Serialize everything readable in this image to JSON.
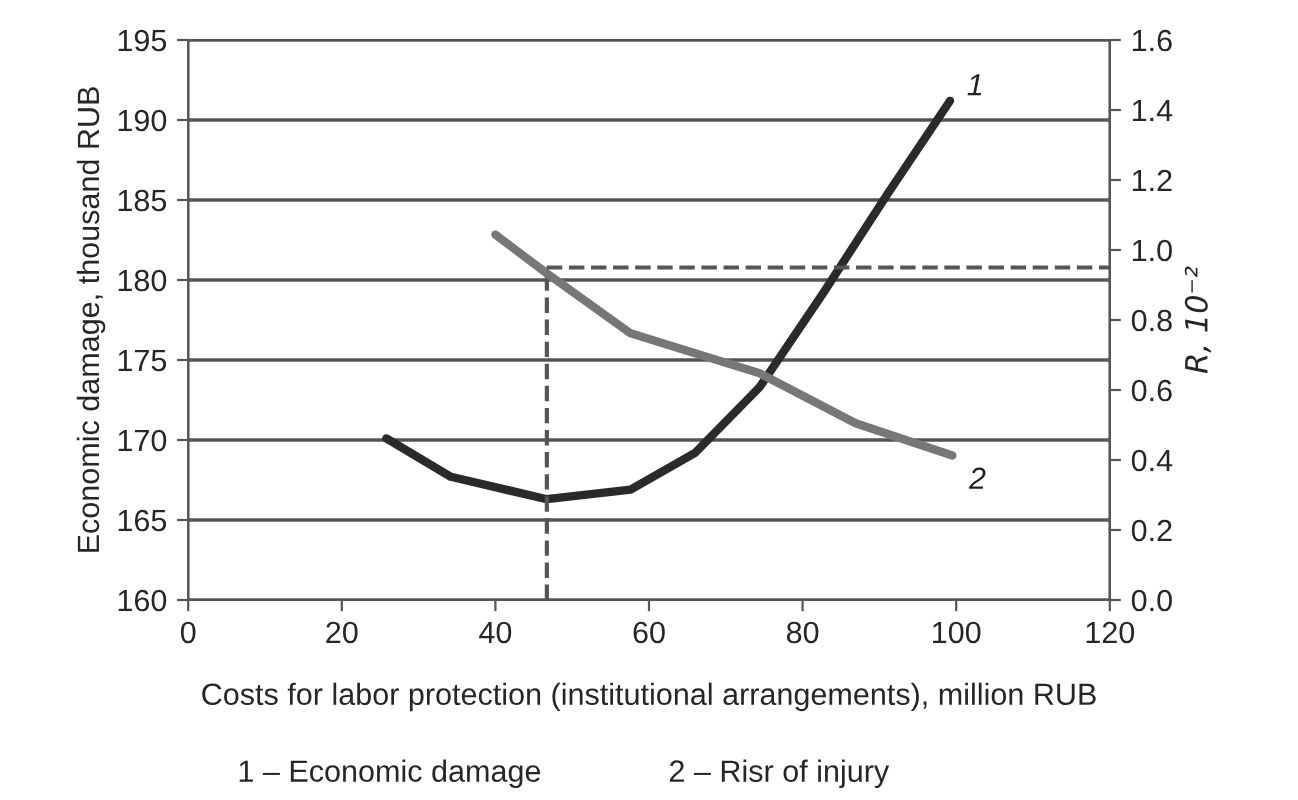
{
  "chart_data": {
    "type": "line",
    "xlabel": "Costs for labor protection (institutional arrangements), million RUB",
    "ylabel": "Economic damage, thousand RUB",
    "y2label": "R, 10⁻²",
    "series": [
      {
        "name": "1",
        "color": "#2a2a2a",
        "x": [
          25.8,
          34.2,
          46.7,
          57.6,
          66,
          74.4,
          82.7,
          91.1,
          99.2
        ],
        "values": [
          170.1,
          167.7,
          166.3,
          166.9,
          169.2,
          173.3,
          179.2,
          185.4,
          191.2
        ]
      },
      {
        "name": "2",
        "color": "#777777",
        "axis": "y2",
        "x": [
          40,
          46.7,
          57.6,
          74.4,
          86.9,
          99.5
        ],
        "values": [
          1.044,
          0.933,
          0.762,
          0.648,
          0.505,
          0.413
        ]
      }
    ],
    "ref_lines": [
      {
        "axis": "x",
        "value": 46.7,
        "color": "#555555",
        "line_style": "dashed"
      },
      {
        "axis": "y2",
        "value": 0.95,
        "color": "#555555",
        "line_style": "dashed"
      }
    ],
    "annotations": [
      "1 – Economic damage",
      "2 – Risr of injury"
    ],
    "xlim": [
      0,
      120
    ],
    "xticks": [
      0,
      20,
      40,
      60,
      80,
      100,
      120
    ],
    "ylim": [
      160,
      195
    ],
    "yticks": [
      160,
      165,
      170,
      175,
      180,
      185,
      190,
      195
    ],
    "y2lim": [
      0,
      1.6
    ],
    "y2ticks": [
      {
        "value": 0,
        "label": "0.0"
      },
      {
        "value": 0.2,
        "label": "0.2"
      },
      {
        "value": 0.4,
        "label": "0.4"
      },
      {
        "value": 0.6,
        "label": "0.6"
      },
      {
        "value": 0.8,
        "label": "0.8"
      },
      {
        "value": 1.0,
        "label": "1.0"
      },
      {
        "value": 1.2,
        "label": "1.2"
      },
      {
        "value": 1.4,
        "label": "1.4"
      },
      {
        "value": 1.6,
        "label": "1.6"
      }
    ],
    "grid": "y",
    "line_style": "solid",
    "marker": "none"
  }
}
